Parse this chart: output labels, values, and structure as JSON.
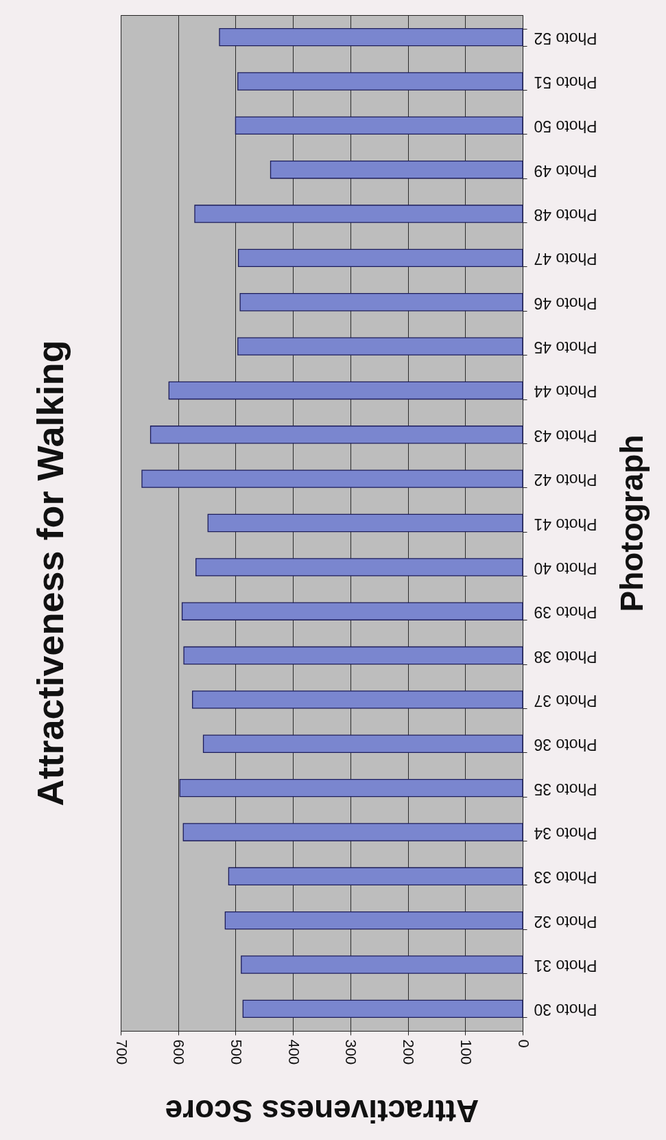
{
  "chart_data": {
    "type": "bar",
    "orientation": "horizontal",
    "title": "Attractiveness for Walking",
    "xlabel": "Attractiveness Score",
    "ylabel": "Photograph",
    "categories": [
      "Photo 52",
      "Photo 51",
      "Photo 50",
      "Photo 49",
      "Photo 48",
      "Photo 47",
      "Photo 46",
      "Photo 45",
      "Photo 44",
      "Photo 43",
      "Photo 42",
      "Photo 41",
      "Photo 40",
      "Photo 39",
      "Photo 38",
      "Photo 37",
      "Photo 36",
      "Photo 35",
      "Photo 34",
      "Photo 33",
      "Photo 32",
      "Photo 31",
      "Photo 30"
    ],
    "values": [
      528,
      496,
      500,
      439,
      571,
      495,
      492,
      496,
      616,
      648,
      663,
      548,
      569,
      593,
      590,
      575,
      556,
      597,
      591,
      512,
      518,
      490,
      487
    ],
    "color": "#7a86cf",
    "xlim": [
      700,
      0
    ],
    "xticks": [
      700,
      600,
      500,
      400,
      300,
      200,
      100,
      0
    ],
    "grid": "x"
  }
}
